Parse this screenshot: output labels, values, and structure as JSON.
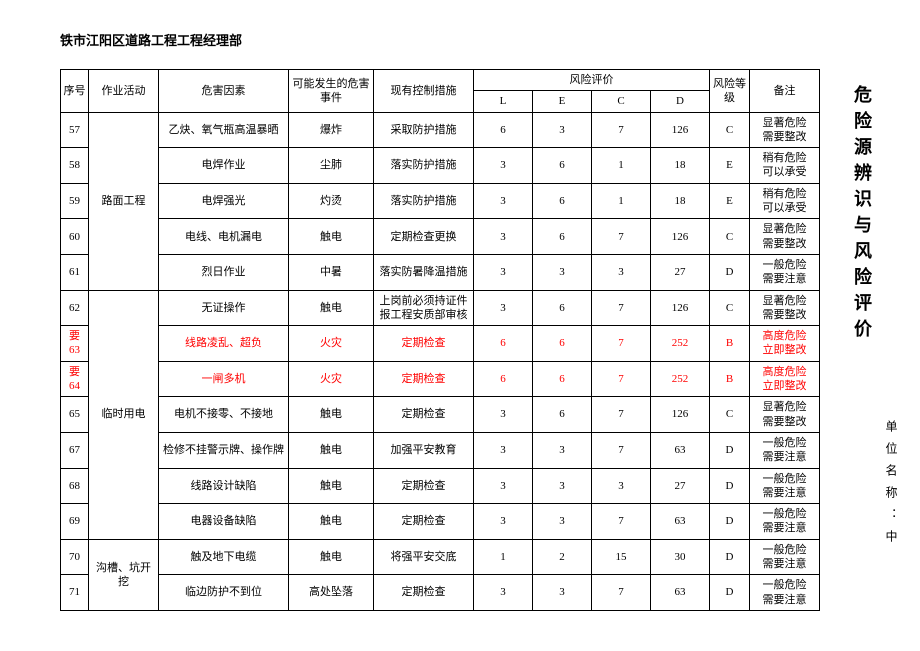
{
  "header": "铁市江阳区道路工程工程经理部",
  "vertical_title": "危险源辨识与风险评价",
  "vertical_sub": "单位名称：中",
  "columns": {
    "seq": "序号",
    "activity": "作业活动",
    "factor": "危害因素",
    "event": "可能发生的危害事件",
    "control": "现有控制措施",
    "risk_eval": "风险评价",
    "L": "L",
    "E": "E",
    "C": "C",
    "D": "D",
    "level": "风险等级",
    "note": "备注"
  },
  "rows": [
    {
      "seq": "57",
      "activity": "",
      "factor": "乙炔、氧气瓶高温暴晒",
      "event": "爆炸",
      "control": "采取防护措施",
      "L": "6",
      "E": "3",
      "C": "7",
      "D": "126",
      "level": "C",
      "note1": "显著危险",
      "note2": "需要整改",
      "red": false
    },
    {
      "seq": "58",
      "activity": "",
      "factor": "电焊作业",
      "event": "尘肺",
      "control": "落实防护措施",
      "L": "3",
      "E": "6",
      "C": "1",
      "D": "18",
      "level": "E",
      "note1": "稍有危险",
      "note2": "可以承受",
      "red": false
    },
    {
      "seq": "59",
      "activity": "路面工程",
      "factor": "电焊强光",
      "event": "灼烫",
      "control": "落实防护措施",
      "L": "3",
      "E": "6",
      "C": "1",
      "D": "18",
      "level": "E",
      "note1": "稍有危险",
      "note2": "可以承受",
      "red": false
    },
    {
      "seq": "60",
      "activity": "",
      "factor": "电线、电机漏电",
      "event": "触电",
      "control": "定期检查更换",
      "L": "3",
      "E": "6",
      "C": "7",
      "D": "126",
      "level": "C",
      "note1": "显著危险",
      "note2": "需要整改",
      "red": false
    },
    {
      "seq": "61",
      "activity": "",
      "factor": "烈日作业",
      "event": "中暑",
      "control": "落实防暑降温措施",
      "L": "3",
      "E": "3",
      "C": "3",
      "D": "27",
      "level": "D",
      "note1": "一般危险",
      "note2": "需要注意",
      "red": false
    },
    {
      "seq": "62",
      "activity": "",
      "factor": "无证操作",
      "event": "触电",
      "control": "上岗前必须持证件报工程安质部审核",
      "L": "3",
      "E": "6",
      "C": "7",
      "D": "126",
      "level": "C",
      "note1": "显著危险",
      "note2": "需要整改",
      "red": false
    },
    {
      "seq": "要63",
      "activity": "",
      "factor": "线路凌乱、超负",
      "event": "火灾",
      "control": "定期检查",
      "L": "6",
      "E": "6",
      "C": "7",
      "D": "252",
      "level": "B",
      "note1": "高度危险",
      "note2": "立即整改",
      "red": true
    },
    {
      "seq": "要64",
      "activity": "",
      "factor": "一闸多机",
      "event": "火灾",
      "control": "定期检查",
      "L": "6",
      "E": "6",
      "C": "7",
      "D": "252",
      "level": "B",
      "note1": "高度危险",
      "note2": "立即整改",
      "red": true
    },
    {
      "seq": "65",
      "activity": "临时用电",
      "factor": "电机不接零、不接地",
      "event": "触电",
      "control": "定期检查",
      "L": "3",
      "E": "6",
      "C": "7",
      "D": "126",
      "level": "C",
      "note1": "显著危险",
      "note2": "需要整改",
      "red": false
    },
    {
      "seq": "67",
      "activity": "",
      "factor": "检修不挂警示牌、操作牌",
      "event": "触电",
      "control": "加强平安教育",
      "L": "3",
      "E": "3",
      "C": "7",
      "D": "63",
      "level": "D",
      "note1": "一般危险",
      "note2": "需要注意",
      "red": false
    },
    {
      "seq": "68",
      "activity": "",
      "factor": "线路设计缺陷",
      "event": "触电",
      "control": "定期检查",
      "L": "3",
      "E": "3",
      "C": "3",
      "D": "27",
      "level": "D",
      "note1": "一般危险",
      "note2": "需要注意",
      "red": false
    },
    {
      "seq": "69",
      "activity": "",
      "factor": "电器设备缺陷",
      "event": "触电",
      "control": "定期检查",
      "L": "3",
      "E": "3",
      "C": "7",
      "D": "63",
      "level": "D",
      "note1": "一般危险",
      "note2": "需要注意",
      "red": false
    },
    {
      "seq": "70",
      "activity": "",
      "factor": "触及地下电缆",
      "event": "触电",
      "control": "将强平安交底",
      "L": "1",
      "E": "2",
      "C": "15",
      "D": "30",
      "level": "D",
      "note1": "一般危险",
      "note2": "需要注意",
      "red": false
    },
    {
      "seq": "71",
      "activity": "沟槽、坑开挖",
      "factor": "临边防护不到位",
      "event": "高处坠落",
      "control": "定期检查",
      "L": "3",
      "E": "3",
      "C": "7",
      "D": "63",
      "level": "D",
      "note1": "一般危险",
      "note2": "需要注意",
      "red": false
    }
  ],
  "activity_groups": [
    {
      "start": 0,
      "span": 5,
      "label": "路面工程"
    },
    {
      "start": 5,
      "span": 7,
      "label": "临时用电"
    },
    {
      "start": 12,
      "span": 2,
      "label": "沟槽、坑开挖"
    }
  ]
}
